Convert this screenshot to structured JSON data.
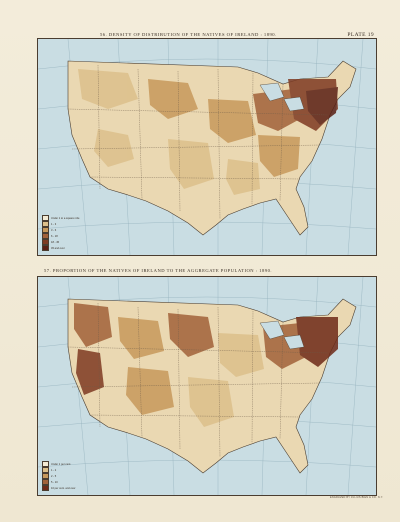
{
  "plate": "PLATE 19",
  "maps": [
    {
      "number_title": "56.  DENSITY OF DISTRIBUTION OF THE NATIVES OF IRELAND : 1890.",
      "legend": [
        {
          "label": "Under 1 to a square mile",
          "color": "#f3ead4"
        },
        {
          "label": "1  -  3",
          "color": "#dcc08b"
        },
        {
          "label": "3  -  6",
          "color": "#c7995c"
        },
        {
          "label": "6  -  18",
          "color": "#a2623a"
        },
        {
          "label": "18  -  45",
          "color": "#7e3a22"
        },
        {
          "label": "45 and over",
          "color": "#5a1f14"
        }
      ]
    },
    {
      "number_title": "57.  PROPORTION OF THE NATIVES OF IRELAND TO THE AGGREGATE POPULATION : 1890.",
      "legend": [
        {
          "label": "Under 1 per cent.",
          "color": "#f3ead4"
        },
        {
          "label": "1  -  2",
          "color": "#dcc08b"
        },
        {
          "label": "2  -  5",
          "color": "#c7995c"
        },
        {
          "label": "5  -  10",
          "color": "#a2623a"
        },
        {
          "label": "10 per cent. and over",
          "color": "#6e2a18"
        }
      ]
    }
  ],
  "colors": {
    "water": "#c9dde3",
    "land_base": "#efe3c6",
    "border": "#4a3d30"
  },
  "footer": "ENGRAVED BY JULIUS BIEN & CO. N.Y."
}
